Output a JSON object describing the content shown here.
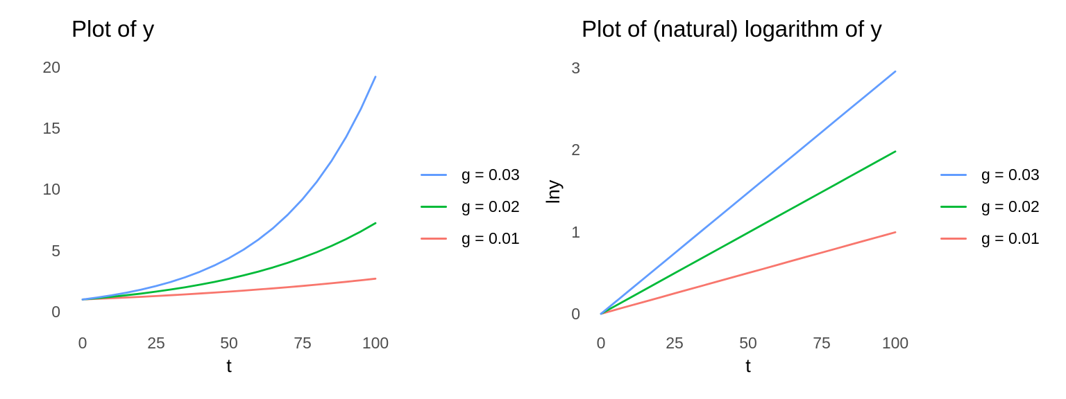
{
  "figure": {
    "background": "#ffffff",
    "title_color": "#000000",
    "tick_color": "#4d4d4d"
  },
  "chart_data": [
    {
      "type": "line",
      "title": "Plot of y",
      "xlabel": "t",
      "ylabel": "",
      "xlim": [
        0,
        100
      ],
      "ylim": [
        0,
        20
      ],
      "x_tick_labels": [
        "0",
        "25",
        "50",
        "75",
        "100"
      ],
      "y_tick_labels": [
        "20",
        "15",
        "10",
        "5",
        "0"
      ],
      "grid": false,
      "legend_position": "right",
      "x": [
        0,
        5,
        10,
        15,
        20,
        25,
        30,
        35,
        40,
        45,
        50,
        55,
        60,
        65,
        70,
        75,
        80,
        85,
        90,
        95,
        100
      ],
      "series": [
        {
          "name": "g = 0.03",
          "color": "#619CFF",
          "values": [
            1,
            1.159,
            1.344,
            1.558,
            1.806,
            2.094,
            2.427,
            2.814,
            3.262,
            3.782,
            4.384,
            5.082,
            5.892,
            6.83,
            7.918,
            9.179,
            10.641,
            12.336,
            14.3,
            16.578,
            19.219
          ]
        },
        {
          "name": "g = 0.02",
          "color": "#00BA38",
          "values": [
            1,
            1.104,
            1.219,
            1.346,
            1.486,
            1.641,
            1.811,
            2.0,
            2.208,
            2.438,
            2.692,
            2.972,
            3.281,
            3.623,
            4.0,
            4.416,
            4.875,
            5.383,
            5.943,
            6.562,
            7.245
          ]
        },
        {
          "name": "g = 0.01",
          "color": "#F8766D",
          "values": [
            1,
            1.051,
            1.105,
            1.161,
            1.22,
            1.282,
            1.348,
            1.417,
            1.489,
            1.565,
            1.645,
            1.729,
            1.817,
            1.909,
            2.007,
            2.109,
            2.217,
            2.33,
            2.449,
            2.574,
            2.705
          ]
        }
      ]
    },
    {
      "type": "line",
      "title": "Plot of (natural) logarithm of y",
      "xlabel": "t",
      "ylabel": "lny",
      "xlim": [
        0,
        100
      ],
      "ylim": [
        0,
        3
      ],
      "x_tick_labels": [
        "0",
        "25",
        "50",
        "75",
        "100"
      ],
      "y_tick_labels": [
        "3",
        "2",
        "1",
        "0"
      ],
      "grid": false,
      "legend_position": "right",
      "x": [
        0,
        5,
        10,
        15,
        20,
        25,
        30,
        35,
        40,
        45,
        50,
        55,
        60,
        65,
        70,
        75,
        80,
        85,
        90,
        95,
        100
      ],
      "series": [
        {
          "name": "g = 0.03",
          "color": "#619CFF",
          "values": [
            0,
            0.148,
            0.296,
            0.443,
            0.591,
            0.739,
            0.887,
            1.035,
            1.182,
            1.33,
            1.478,
            1.626,
            1.774,
            1.921,
            2.069,
            2.217,
            2.365,
            2.513,
            2.66,
            2.808,
            2.956
          ]
        },
        {
          "name": "g = 0.02",
          "color": "#00BA38",
          "values": [
            0,
            0.099,
            0.198,
            0.297,
            0.396,
            0.495,
            0.594,
            0.693,
            0.792,
            0.891,
            0.99,
            1.089,
            1.188,
            1.287,
            1.386,
            1.485,
            1.584,
            1.683,
            1.782,
            1.881,
            1.98
          ]
        },
        {
          "name": "g = 0.01",
          "color": "#F8766D",
          "values": [
            0,
            0.05,
            0.1,
            0.149,
            0.199,
            0.249,
            0.299,
            0.348,
            0.398,
            0.448,
            0.498,
            0.547,
            0.597,
            0.647,
            0.697,
            0.746,
            0.796,
            0.846,
            0.896,
            0.945,
            0.995
          ]
        }
      ]
    }
  ]
}
